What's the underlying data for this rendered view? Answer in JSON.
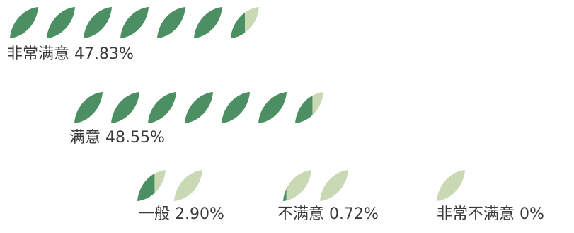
{
  "chart_data": {
    "type": "pictograph",
    "icon": "leaf-icon",
    "colors": {
      "filled": "#4b8f63",
      "empty": "#c8d9b4"
    },
    "categories": [
      {
        "name": "非常满意",
        "value": 47.83,
        "percent_label": "47.83%",
        "label": "非常满意 47.83%",
        "leaves_shown": 7,
        "leaves_filled": 6.5
      },
      {
        "name": "满意",
        "value": 48.55,
        "percent_label": "48.55%",
        "label": "满意 48.55%",
        "leaves_shown": 7,
        "leaves_filled": 6.6
      },
      {
        "name": "一般",
        "value": 2.9,
        "percent_label": "2.90%",
        "label": "一般 2.90%",
        "leaves_shown": 2,
        "leaves_filled": 0.6
      },
      {
        "name": "不满意",
        "value": 0.72,
        "percent_label": "0.72%",
        "label": "不满意 0.72%",
        "leaves_shown": 2,
        "leaves_filled": 0.15
      },
      {
        "name": "非常不满意",
        "value": 0,
        "percent_label": "0%",
        "label": "非常不满意 0%",
        "leaves_shown": 1,
        "leaves_filled": 0
      }
    ]
  }
}
